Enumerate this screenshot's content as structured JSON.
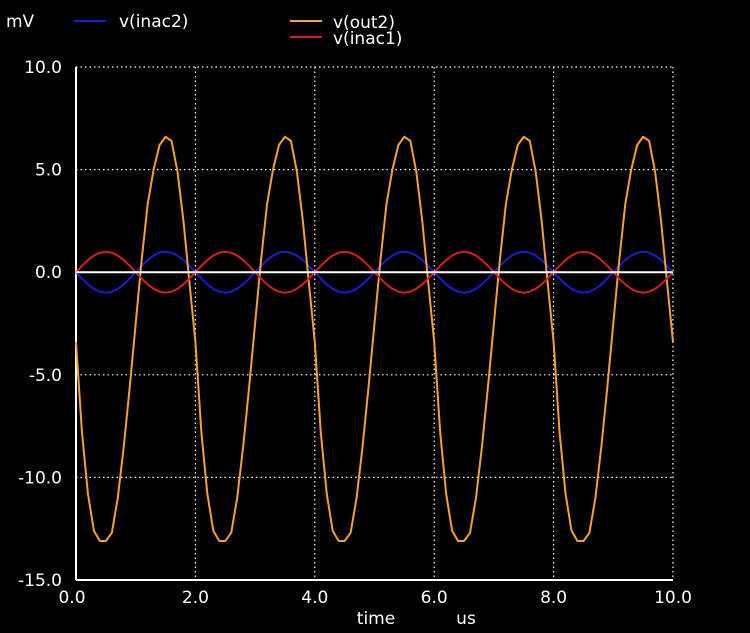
{
  "chart_data": {
    "type": "line",
    "title": "",
    "xlabel": "time",
    "xunit": "us",
    "yunit": "mV",
    "xlim": [
      0.0,
      10.0
    ],
    "ylim": [
      -15.0,
      10.0
    ],
    "xticks": [
      0.0,
      2.0,
      4.0,
      6.0,
      8.0,
      10.0
    ],
    "xtick_labels": [
      "0.0",
      "2.0",
      "4.0",
      "6.0",
      "8.0",
      "10.0"
    ],
    "yticks": [
      10.0,
      5.0,
      0.0,
      -5.0,
      -10.0,
      -15.0
    ],
    "ytick_labels": [
      "10.0",
      "5.0",
      "0.0",
      "-5.0",
      "-10.0",
      "-15.0"
    ],
    "grid": true,
    "legend_placement": "top",
    "series": [
      {
        "name": "v(inac2)",
        "color": "#1a1ad8",
        "x": [
          0.0,
          0.1,
          0.2,
          0.3,
          0.4,
          0.5,
          0.6,
          0.7,
          0.8,
          0.9,
          1.0,
          1.1,
          1.2,
          1.3,
          1.4,
          1.5,
          1.6,
          1.7,
          1.8,
          1.9,
          2.0,
          2.1,
          2.2,
          2.3,
          2.4,
          2.5,
          2.6,
          2.7,
          2.8,
          2.9,
          3.0,
          3.1,
          3.2,
          3.3,
          3.4,
          3.5,
          3.6,
          3.7,
          3.8,
          3.9,
          4.0,
          4.1,
          4.2,
          4.3,
          4.4,
          4.5,
          4.6,
          4.7,
          4.8,
          4.9,
          5.0,
          5.1,
          5.2,
          5.3,
          5.4,
          5.5,
          5.6,
          5.7,
          5.8,
          5.9,
          6.0,
          6.1,
          6.2,
          6.3,
          6.4,
          6.5,
          6.6,
          6.7,
          6.8,
          6.9,
          7.0,
          7.1,
          7.2,
          7.3,
          7.4,
          7.5,
          7.6,
          7.7,
          7.8,
          7.9,
          8.0,
          8.1,
          8.2,
          8.3,
          8.4,
          8.5,
          8.6,
          8.7,
          8.8,
          8.9,
          9.0,
          9.1,
          9.2,
          9.3,
          9.4,
          9.5,
          9.6,
          9.7,
          9.8,
          9.9,
          10.0
        ],
        "values": [
          0.0,
          -0.31,
          -0.59,
          -0.81,
          -0.95,
          -1.0,
          -0.95,
          -0.81,
          -0.59,
          -0.31,
          0.0,
          0.31,
          0.59,
          0.81,
          0.95,
          1.0,
          0.95,
          0.81,
          0.59,
          0.31,
          0.0,
          -0.31,
          -0.59,
          -0.81,
          -0.95,
          -1.0,
          -0.95,
          -0.81,
          -0.59,
          -0.31,
          0.0,
          0.31,
          0.59,
          0.81,
          0.95,
          1.0,
          0.95,
          0.81,
          0.59,
          0.31,
          0.0,
          -0.31,
          -0.59,
          -0.81,
          -0.95,
          -1.0,
          -0.95,
          -0.81,
          -0.59,
          -0.31,
          0.0,
          0.31,
          0.59,
          0.81,
          0.95,
          1.0,
          0.95,
          0.81,
          0.59,
          0.31,
          0.0,
          -0.31,
          -0.59,
          -0.81,
          -0.95,
          -1.0,
          -0.95,
          -0.81,
          -0.59,
          -0.31,
          0.0,
          0.31,
          0.59,
          0.81,
          0.95,
          1.0,
          0.95,
          0.81,
          0.59,
          0.31,
          0.0,
          -0.31,
          -0.59,
          -0.81,
          -0.95,
          -1.0,
          -0.95,
          -0.81,
          -0.59,
          -0.31,
          0.0,
          0.31,
          0.59,
          0.81,
          0.95,
          1.0,
          0.95,
          0.81,
          0.59,
          0.31,
          0.0
        ]
      },
      {
        "name": "v(out2)",
        "color": "#f5a030",
        "x": [
          0.0,
          0.1,
          0.2,
          0.3,
          0.4,
          0.5,
          0.6,
          0.7,
          0.8,
          0.9,
          1.0,
          1.1,
          1.2,
          1.3,
          1.4,
          1.5,
          1.6,
          1.7,
          1.8,
          1.9,
          2.0,
          2.1,
          2.2,
          2.3,
          2.4,
          2.5,
          2.6,
          2.7,
          2.8,
          2.9,
          3.0,
          3.1,
          3.2,
          3.3,
          3.4,
          3.5,
          3.6,
          3.7,
          3.8,
          3.9,
          4.0,
          4.1,
          4.2,
          4.3,
          4.4,
          4.5,
          4.6,
          4.7,
          4.8,
          4.9,
          5.0,
          5.1,
          5.2,
          5.3,
          5.4,
          5.5,
          5.6,
          5.7,
          5.8,
          5.9,
          6.0,
          6.1,
          6.2,
          6.3,
          6.4,
          6.5,
          6.6,
          6.7,
          6.8,
          6.9,
          7.0,
          7.1,
          7.2,
          7.3,
          7.4,
          7.5,
          7.6,
          7.7,
          7.8,
          7.9,
          8.0,
          8.1,
          8.2,
          8.3,
          8.4,
          8.5,
          8.6,
          8.7,
          8.8,
          8.9,
          9.0,
          9.1,
          9.2,
          9.3,
          9.4,
          9.5,
          9.6,
          9.7,
          9.8,
          9.9,
          10.0
        ],
        "values": [
          -3.4,
          -7.8,
          -10.8,
          -12.6,
          -13.1,
          -13.1,
          -12.7,
          -11.0,
          -8.5,
          -5.6,
          -2.5,
          0.6,
          3.3,
          5.0,
          6.2,
          6.6,
          6.4,
          4.9,
          2.5,
          -0.5,
          -3.4,
          -7.8,
          -10.8,
          -12.6,
          -13.1,
          -13.1,
          -12.7,
          -11.0,
          -8.5,
          -5.6,
          -2.5,
          0.6,
          3.3,
          5.0,
          6.2,
          6.6,
          6.4,
          4.9,
          2.5,
          -0.5,
          -3.4,
          -7.8,
          -10.8,
          -12.6,
          -13.1,
          -13.1,
          -12.7,
          -11.0,
          -8.5,
          -5.6,
          -2.5,
          0.6,
          3.3,
          5.0,
          6.2,
          6.6,
          6.4,
          4.9,
          2.5,
          -0.5,
          -3.4,
          -7.8,
          -10.8,
          -12.6,
          -13.1,
          -13.1,
          -12.7,
          -11.0,
          -8.5,
          -5.6,
          -2.5,
          0.6,
          3.3,
          5.0,
          6.2,
          6.6,
          6.4,
          4.9,
          2.5,
          -0.5,
          -3.4,
          -7.8,
          -10.8,
          -12.6,
          -13.1,
          -13.1,
          -12.7,
          -11.0,
          -8.5,
          -5.6,
          -2.5,
          0.6,
          3.3,
          5.0,
          6.2,
          6.6,
          6.4,
          4.9,
          2.5,
          -0.5,
          -3.4
        ]
      },
      {
        "name": "v(inac1)",
        "color": "#d81e1e",
        "x": [
          0.0,
          0.1,
          0.2,
          0.3,
          0.4,
          0.5,
          0.6,
          0.7,
          0.8,
          0.9,
          1.0,
          1.1,
          1.2,
          1.3,
          1.4,
          1.5,
          1.6,
          1.7,
          1.8,
          1.9,
          2.0,
          2.1,
          2.2,
          2.3,
          2.4,
          2.5,
          2.6,
          2.7,
          2.8,
          2.9,
          3.0,
          3.1,
          3.2,
          3.3,
          3.4,
          3.5,
          3.6,
          3.7,
          3.8,
          3.9,
          4.0,
          4.1,
          4.2,
          4.3,
          4.4,
          4.5,
          4.6,
          4.7,
          4.8,
          4.9,
          5.0,
          5.1,
          5.2,
          5.3,
          5.4,
          5.5,
          5.6,
          5.7,
          5.8,
          5.9,
          6.0,
          6.1,
          6.2,
          6.3,
          6.4,
          6.5,
          6.6,
          6.7,
          6.8,
          6.9,
          7.0,
          7.1,
          7.2,
          7.3,
          7.4,
          7.5,
          7.6,
          7.7,
          7.8,
          7.9,
          8.0,
          8.1,
          8.2,
          8.3,
          8.4,
          8.5,
          8.6,
          8.7,
          8.8,
          8.9,
          9.0,
          9.1,
          9.2,
          9.3,
          9.4,
          9.5,
          9.6,
          9.7,
          9.8,
          9.9,
          10.0
        ],
        "values": [
          0.0,
          0.31,
          0.59,
          0.81,
          0.95,
          1.0,
          0.95,
          0.81,
          0.59,
          0.31,
          0.0,
          -0.31,
          -0.59,
          -0.81,
          -0.95,
          -1.0,
          -0.95,
          -0.81,
          -0.59,
          -0.31,
          0.0,
          0.31,
          0.59,
          0.81,
          0.95,
          1.0,
          0.95,
          0.81,
          0.59,
          0.31,
          0.0,
          -0.31,
          -0.59,
          -0.81,
          -0.95,
          -1.0,
          -0.95,
          -0.81,
          -0.59,
          -0.31,
          0.0,
          0.31,
          0.59,
          0.81,
          0.95,
          1.0,
          0.95,
          0.81,
          0.59,
          0.31,
          0.0,
          -0.31,
          -0.59,
          -0.81,
          -0.95,
          -1.0,
          -0.95,
          -0.81,
          -0.59,
          -0.31,
          0.0,
          0.31,
          0.59,
          0.81,
          0.95,
          1.0,
          0.95,
          0.81,
          0.59,
          0.31,
          0.0,
          -0.31,
          -0.59,
          -0.81,
          -0.95,
          -1.0,
          -0.95,
          -0.81,
          -0.59,
          -0.31,
          0.0,
          0.31,
          0.59,
          0.81,
          0.95,
          1.0,
          0.95,
          0.81,
          0.59,
          0.31,
          0.0,
          -0.31,
          -0.59,
          -0.81,
          -0.95,
          -1.0,
          -0.95,
          -0.81,
          -0.59,
          -0.31,
          0.0
        ]
      },
      {
        "name": "",
        "color": "#ffffff",
        "x": [
          0.0,
          10.0
        ],
        "values": [
          0.0,
          0.0
        ]
      }
    ]
  }
}
